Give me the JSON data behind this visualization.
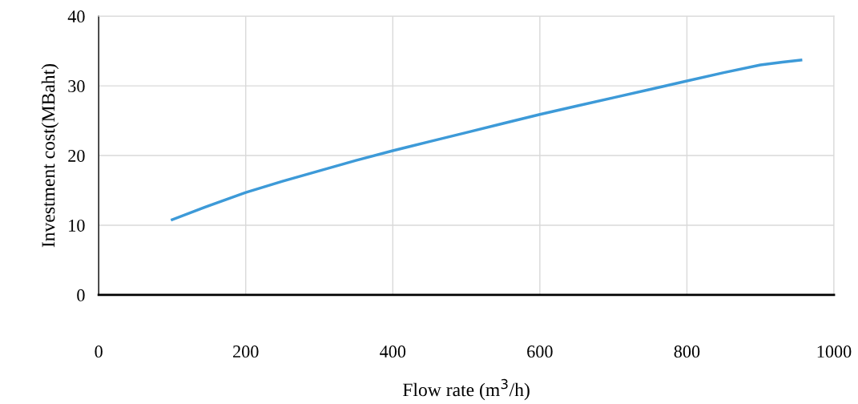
{
  "chart_data": {
    "type": "line",
    "xlabel": "Flow rate (m$^{3}$/h)",
    "ylabel": "Investment cost(MBaht)",
    "x": [
      100,
      150,
      200,
      250,
      300,
      350,
      400,
      450,
      500,
      550,
      600,
      650,
      700,
      750,
      800,
      850,
      900,
      930,
      955
    ],
    "series": [
      {
        "color": "#3d9ad8",
        "values": [
          10.8,
          12.8,
          14.7,
          16.3,
          17.8,
          19.3,
          20.7,
          22.0,
          23.3,
          24.6,
          25.9,
          27.1,
          28.3,
          29.5,
          30.7,
          31.9,
          33.0,
          33.4,
          33.7
        ]
      }
    ],
    "xlim": [
      0,
      1000
    ],
    "ylim": [
      0,
      40
    ],
    "xticks": [
      0,
      200,
      400,
      600,
      800,
      1000
    ],
    "yticks": [
      0,
      10,
      20,
      30,
      40
    ],
    "grid": true,
    "line_style": "solid",
    "marker": "none",
    "legend": false
  }
}
